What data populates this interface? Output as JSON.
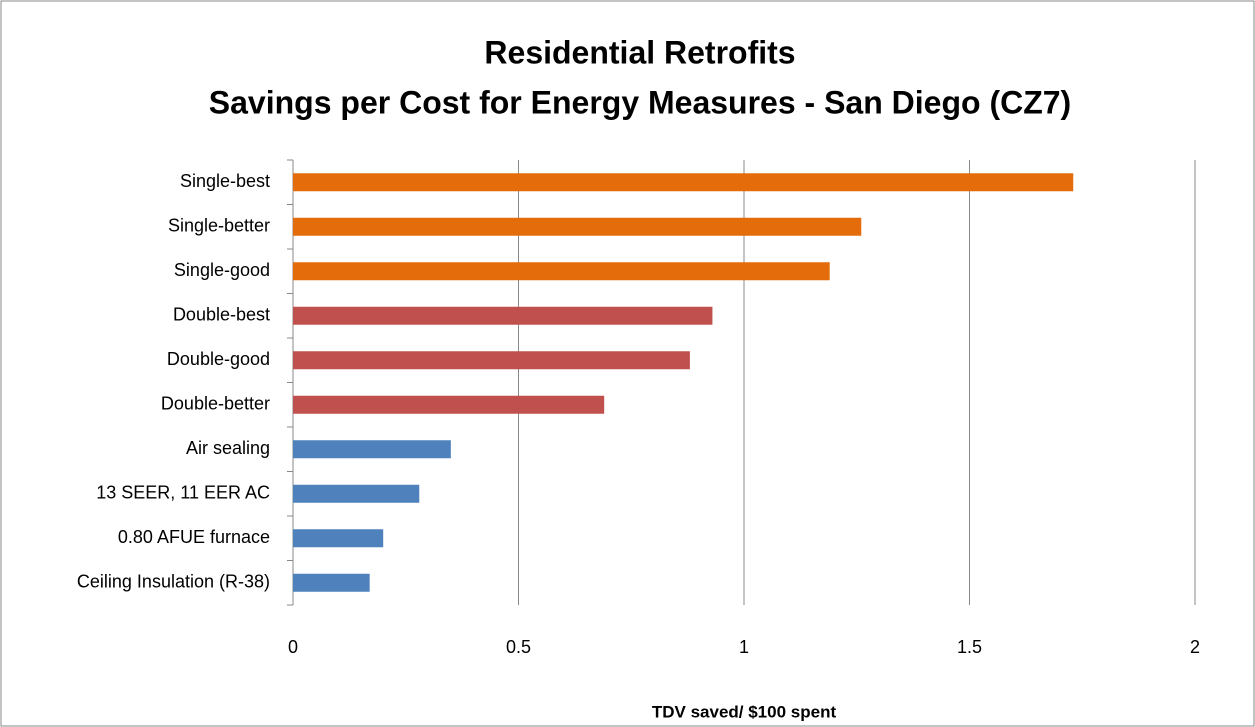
{
  "chart_data": {
    "type": "bar",
    "orientation": "horizontal",
    "title": [
      "Residential Retrofits",
      "Savings per Cost for Energy Measures - San Diego (CZ7)"
    ],
    "x_label": "TDV saved/ $100 spent",
    "categories": [
      "Single-best",
      "Single-better",
      "Single-good",
      "Double-best",
      "Double-good",
      "Double-better",
      "Air sealing",
      "13 SEER, 11 EER AC",
      "0.80 AFUE furnace",
      "Ceiling Insulation (R-38)"
    ],
    "values": [
      1.73,
      1.26,
      1.19,
      0.93,
      0.88,
      0.69,
      0.35,
      0.28,
      0.2,
      0.17
    ],
    "colors": [
      "#e46c0a",
      "#e46c0a",
      "#e46c0a",
      "#c0504d",
      "#c0504d",
      "#c0504d",
      "#4f81bd",
      "#4f81bd",
      "#4f81bd",
      "#4f81bd"
    ],
    "xlim": [
      0,
      2
    ],
    "xticks": [
      0,
      0.5,
      1,
      1.5,
      2
    ],
    "grid": true
  }
}
